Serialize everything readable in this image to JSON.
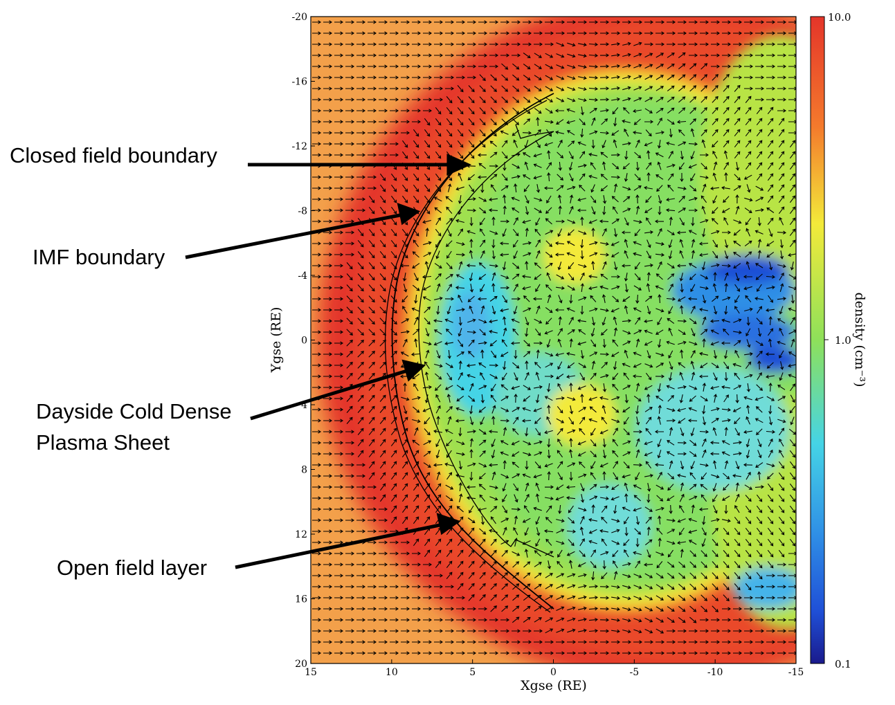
{
  "chart_data": {
    "type": "heatmap",
    "xlabel": "Xgse (RE)",
    "ylabel": "Ygse (RE)",
    "xlim": [
      15,
      -15
    ],
    "ylim": [
      -20,
      20
    ],
    "x_ticks": [
      "15",
      "10",
      "5",
      "0",
      "-5",
      "-10",
      "-15"
    ],
    "y_ticks": [
      "-20",
      "-16",
      "-12",
      "-8",
      "-4",
      "0",
      "4",
      "8",
      "12",
      "16",
      "20"
    ],
    "colorbar": {
      "label": "density (cm⁻³)",
      "scale": "log",
      "range": [
        0.1,
        10.0
      ],
      "tick_labels": [
        "10.0",
        "1.0",
        "0.1"
      ],
      "colors": [
        "#1a1a8c",
        "#1f4fd6",
        "#2f8fe6",
        "#45d4e6",
        "#7ee07a",
        "#b9e63f",
        "#f3ea3a",
        "#f7a02e",
        "#e4352a"
      ]
    },
    "overlay": "velocity vector field (arrows)",
    "boundaries": [
      "Closed field boundary",
      "IMF boundary"
    ],
    "annotations": [
      {
        "text": "Closed field boundary",
        "target": [
          5.8,
          -10.8
        ]
      },
      {
        "text": "IMF boundary",
        "target": [
          8.4,
          -8.0
        ]
      },
      {
        "text": [
          "Dayside Cold Dense",
          "Plasma Sheet"
        ],
        "target": [
          8.1,
          -1.5
        ]
      },
      {
        "text": "Open field layer",
        "target": [
          6.1,
          11.0
        ]
      }
    ]
  },
  "labels": {
    "closed_field": "Closed field boundary",
    "imf": "IMF boundary",
    "dayside_line1": "Dayside Cold Dense",
    "dayside_line2": "Plasma Sheet",
    "open_field": "Open field layer"
  }
}
